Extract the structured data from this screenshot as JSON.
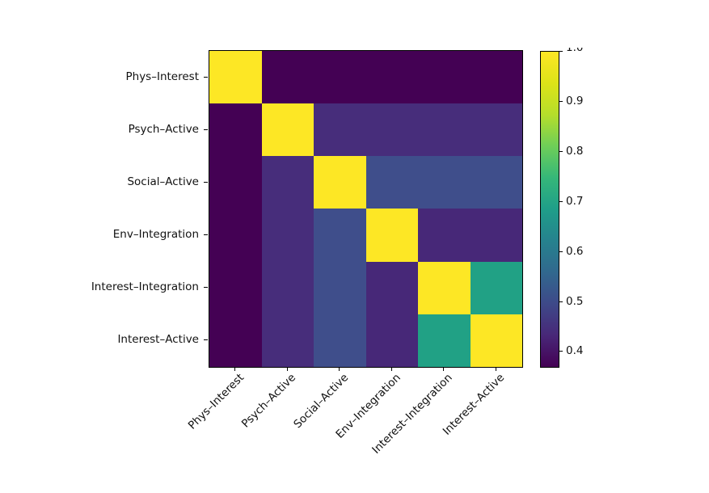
{
  "figure": {
    "background_color": "#ffffff",
    "text_color": "#111111"
  },
  "chart_data": {
    "type": "heatmap",
    "colormap": "viridis",
    "vmin": 0.37,
    "vmax": 1.0,
    "categories": [
      "Phys–Interest",
      "Psych–Active",
      "Social–Active",
      "Env–Integration",
      "Interest–Integration",
      "Interest–Active"
    ],
    "matrix": [
      [
        1,
        0.37,
        0.37,
        0.37,
        0.37,
        0.37
      ],
      [
        0.37,
        1,
        0.46,
        0.46,
        0.46,
        0.46
      ],
      [
        0.37,
        0.46,
        1,
        0.52,
        0.52,
        0.52
      ],
      [
        0.37,
        0.46,
        0.52,
        1,
        0.44,
        0.44
      ],
      [
        0.37,
        0.46,
        0.52,
        0.44,
        1,
        0.7
      ],
      [
        0.37,
        0.46,
        0.52,
        0.44,
        0.7,
        1
      ]
    ],
    "value_colors": {
      "1": "#fde725",
      "0.37": "#440154",
      "0.44": "#472878",
      "0.46": "#472d7b",
      "0.52": "#3f4e8b",
      "0.7": "#21a185"
    },
    "colorbar": {
      "ticks": [
        {
          "label": "1.0",
          "value": 1.0,
          "clipped": true
        },
        {
          "label": "0.9",
          "value": 0.9
        },
        {
          "label": "0.8",
          "value": 0.8
        },
        {
          "label": "0.7",
          "value": 0.7
        },
        {
          "label": "0.6",
          "value": 0.6
        },
        {
          "label": "0.5",
          "value": 0.5
        },
        {
          "label": "0.4",
          "value": 0.4
        }
      ],
      "gradient_stops": [
        {
          "t": 0.0,
          "color": "#440154"
        },
        {
          "t": 0.1,
          "color": "#482878"
        },
        {
          "t": 0.2,
          "color": "#3e4989"
        },
        {
          "t": 0.3,
          "color": "#31688e"
        },
        {
          "t": 0.4,
          "color": "#26828e"
        },
        {
          "t": 0.5,
          "color": "#1f9e89"
        },
        {
          "t": 0.6,
          "color": "#35b779"
        },
        {
          "t": 0.7,
          "color": "#6ece58"
        },
        {
          "t": 0.8,
          "color": "#b5de2b"
        },
        {
          "t": 0.9,
          "color": "#dde318"
        },
        {
          "t": 1.0,
          "color": "#fde725"
        }
      ]
    }
  }
}
